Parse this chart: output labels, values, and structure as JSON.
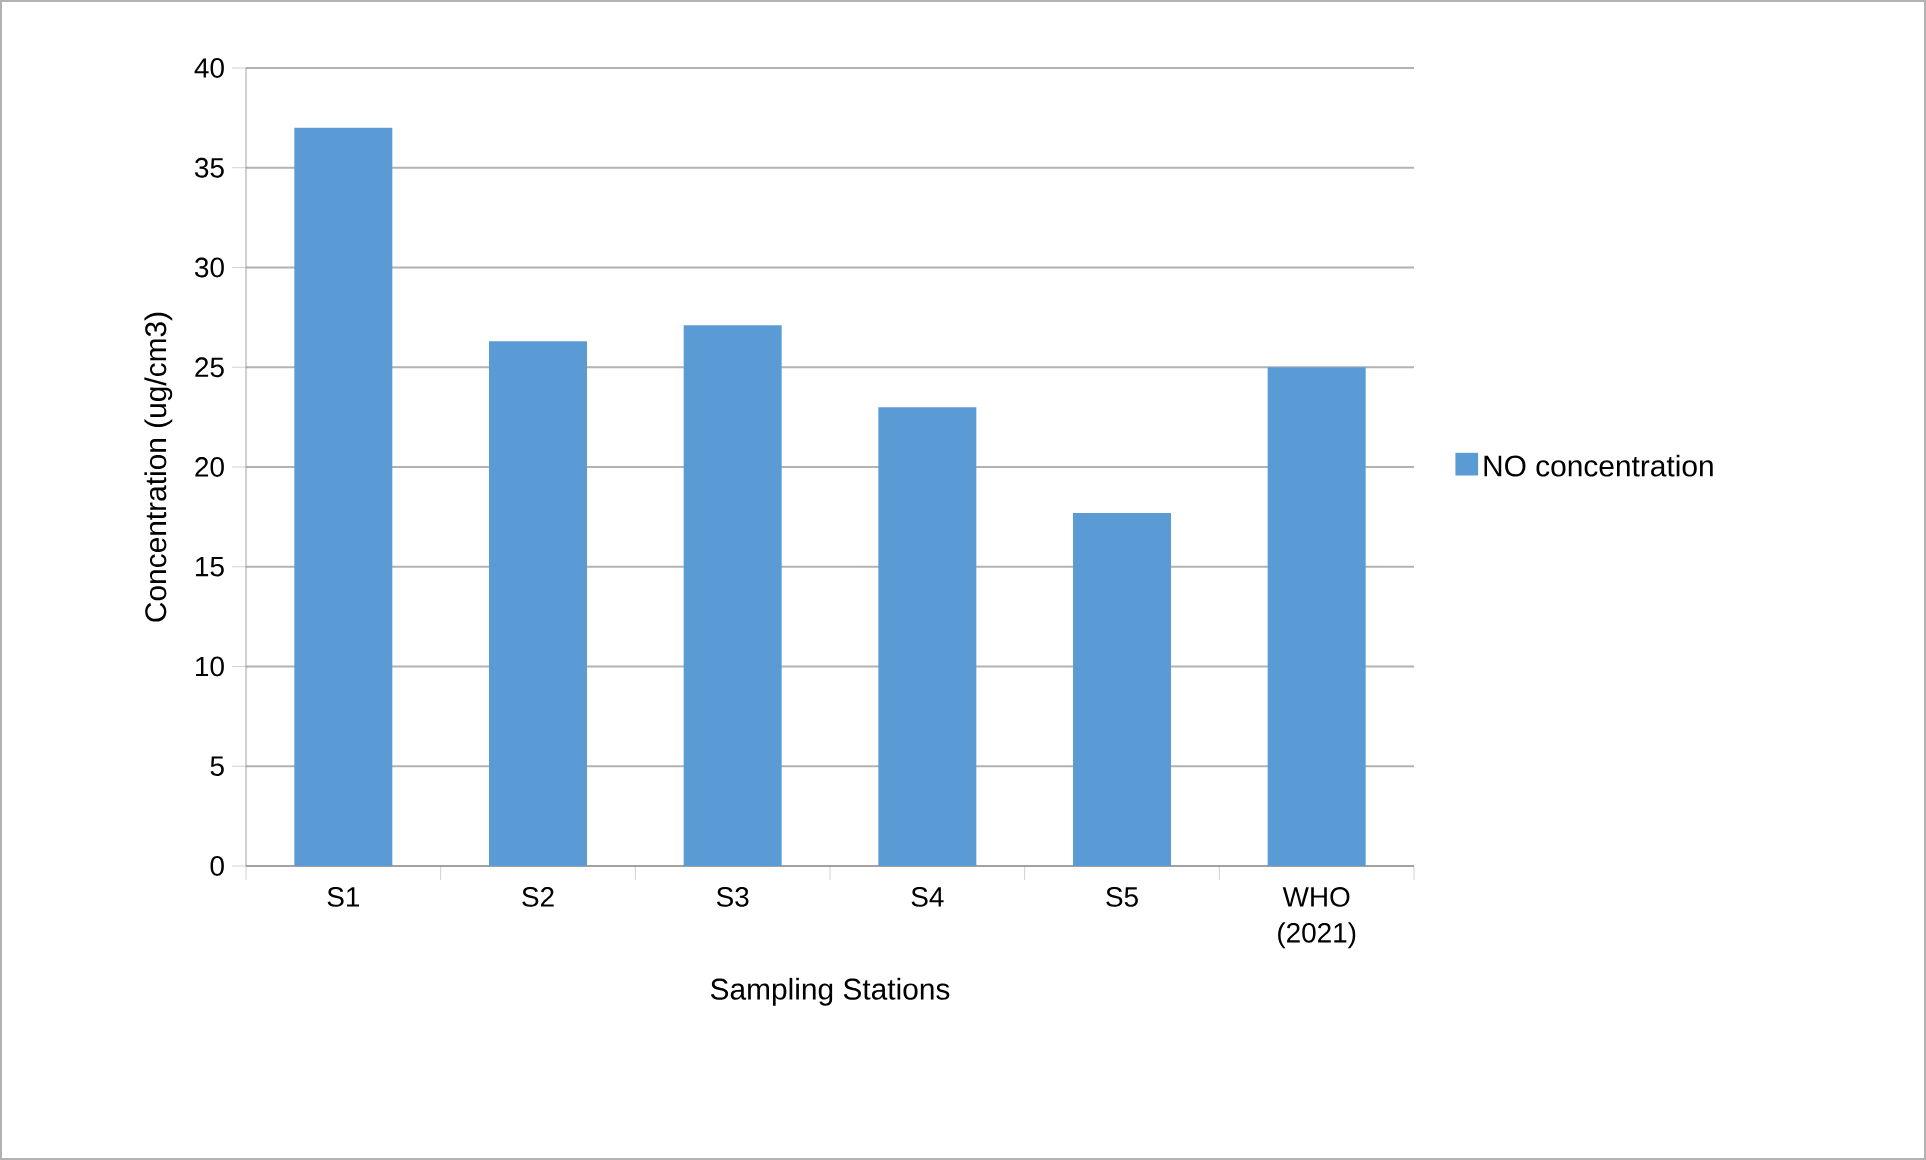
{
  "chart_data": {
    "type": "bar",
    "xlabel": "Sampling Stations",
    "ylabel": "Concentration (ug/cm3)",
    "categories": [
      "S1",
      "S2",
      "S3",
      "S4",
      "S5",
      "WHO (2021)"
    ],
    "series": [
      {
        "name": "NO concentration",
        "color": "#5b9bd5",
        "values": [
          37.0,
          26.3,
          27.1,
          23.0,
          17.7,
          25.0
        ]
      }
    ],
    "ylim": [
      0,
      40
    ],
    "yticks": [
      0,
      5,
      10,
      15,
      20,
      25,
      30,
      35,
      40
    ],
    "grid": "y",
    "legend": "right"
  }
}
